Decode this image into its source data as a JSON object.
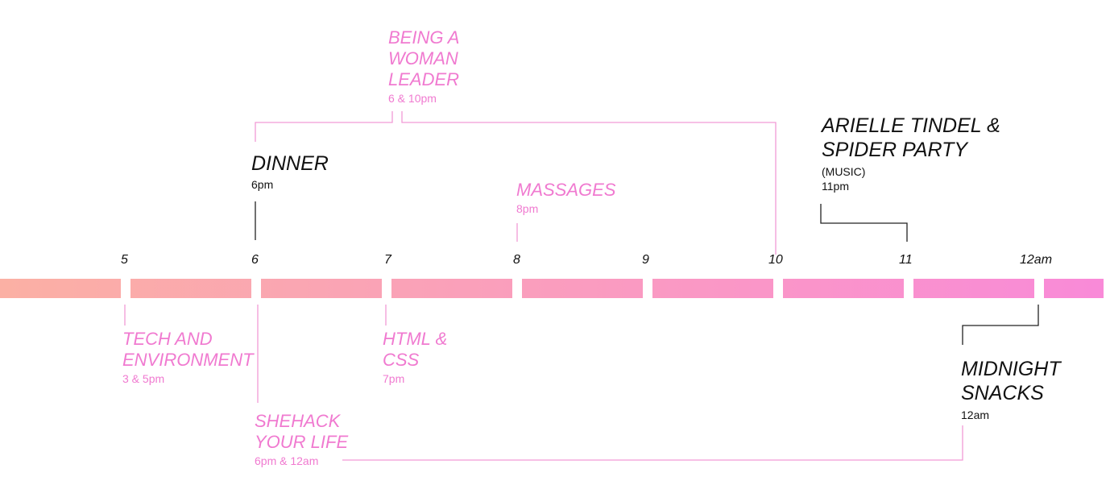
{
  "timeline": {
    "ticks": [
      "5",
      "6",
      "7",
      "8",
      "9",
      "10",
      "11",
      "12am"
    ],
    "gradient": {
      "start": "#fbb0a4",
      "end": "#f98ad8"
    }
  },
  "events": {
    "being_a_woman_leader": {
      "title": [
        "BEING A",
        "WOMAN",
        "LEADER"
      ],
      "time": "6 & 10pm"
    },
    "dinner": {
      "title": [
        "DINNER"
      ],
      "time": "6pm"
    },
    "massages": {
      "title": [
        "MASSAGES"
      ],
      "time": "8pm"
    },
    "arielle": {
      "title": [
        "ARIELLE TINDEL &",
        "SPIDER PARTY"
      ],
      "note": "(MUSIC)",
      "time": "11pm"
    },
    "tech_environment": {
      "title": [
        "TECH AND",
        "ENVIRONMENT"
      ],
      "time": "3 & 5pm"
    },
    "html_css": {
      "title": [
        "HTML &",
        "CSS"
      ],
      "time": "7pm"
    },
    "shehack": {
      "title": [
        "SHEHACK",
        "YOUR LIFE"
      ],
      "time": "6pm & 12am"
    },
    "midnight_snacks": {
      "title": [
        "MIDNIGHT",
        "SNACKS"
      ],
      "time": "12am"
    }
  },
  "colors": {
    "pink": "#f07ad0",
    "black": "#111111",
    "pink_line": "#f29ad6",
    "black_line": "#222222"
  }
}
